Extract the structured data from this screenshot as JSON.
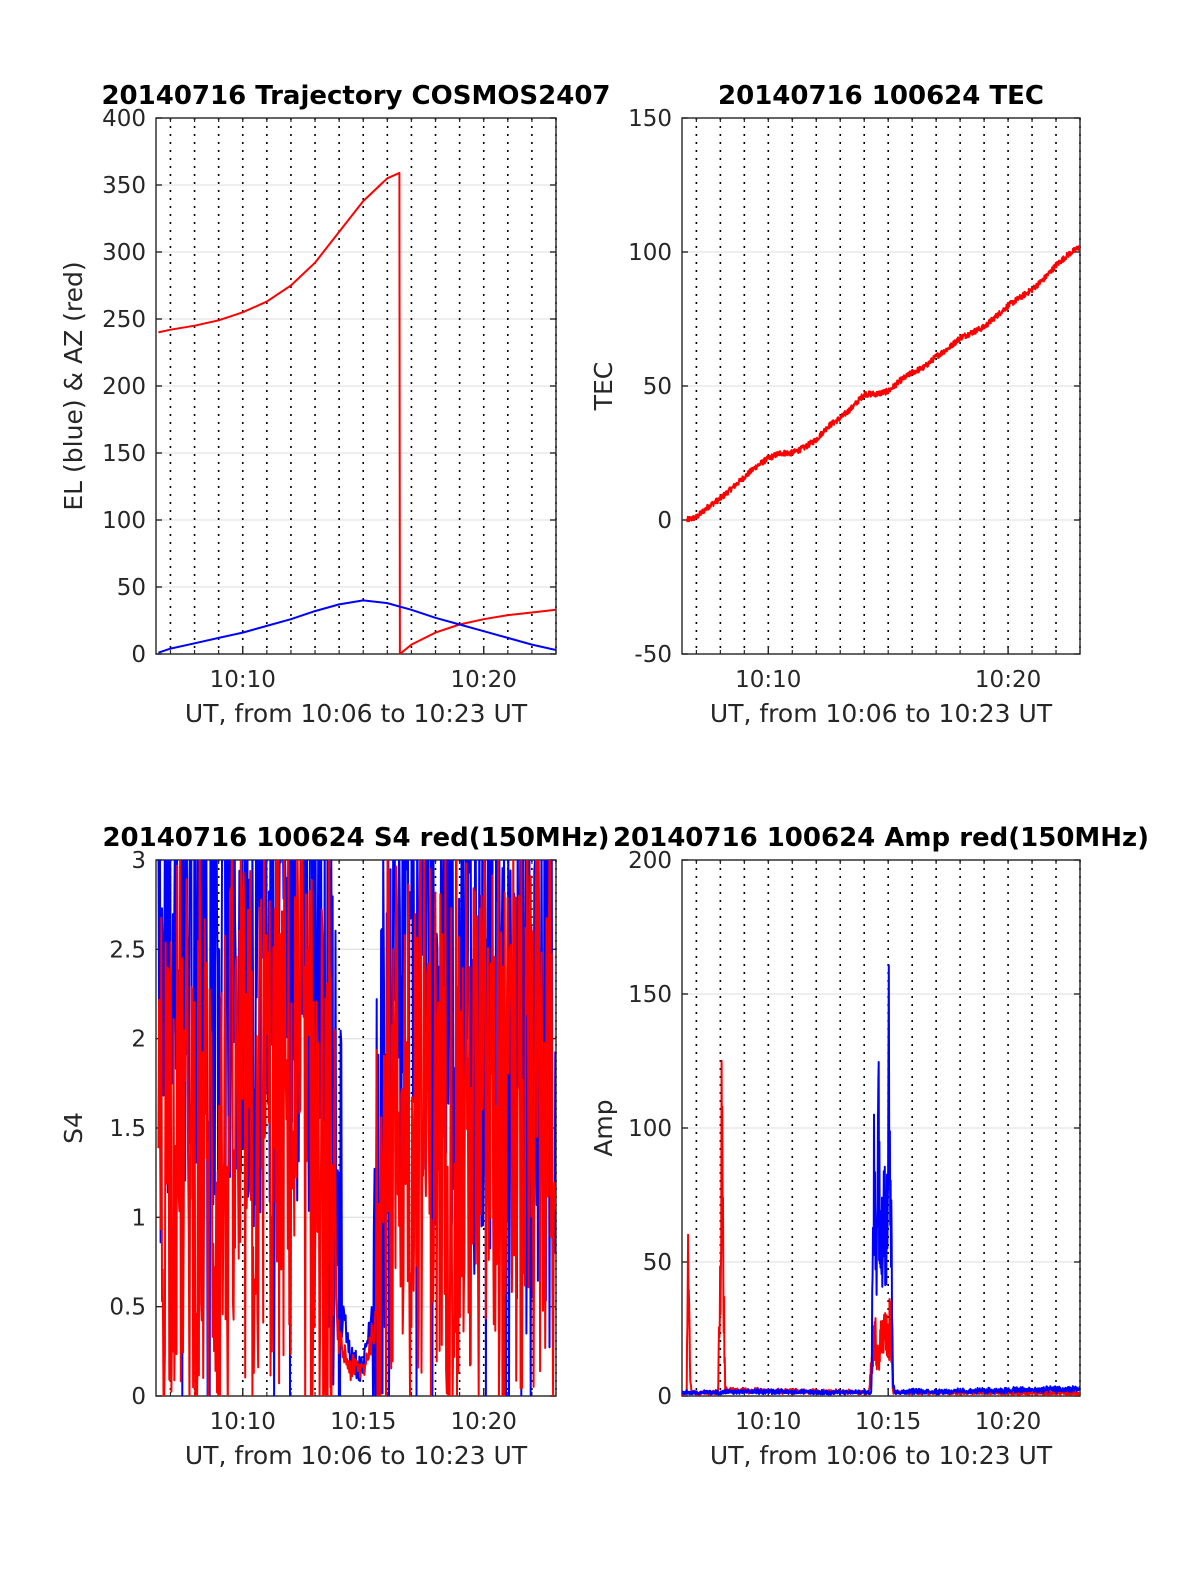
{
  "chart_data": [
    {
      "type": "line",
      "title": "20140716 Trajectory COSMOS2407",
      "xlabel": "UT, from 10:06 to 10:23 UT",
      "ylabel": "EL (blue) & AZ (red)",
      "xlim_minutes": [
        6.4,
        23.0
      ],
      "ylim": [
        0,
        400
      ],
      "x_ticks": [
        "10:10",
        "10:20"
      ],
      "y_ticks": [
        "0",
        "50",
        "100",
        "150",
        "200",
        "250",
        "300",
        "350",
        "400"
      ],
      "grid": "minor-dotted-x, major-solid-y",
      "series": [
        {
          "color": "#ff0000",
          "x_minutes": [
            6.5,
            7,
            8,
            9,
            10,
            11,
            12,
            13,
            14,
            15,
            16,
            16.5,
            16.52,
            17,
            18,
            19,
            20,
            21,
            22,
            23
          ],
          "values": [
            240,
            242,
            245,
            249,
            255,
            263,
            275,
            292,
            315,
            338,
            355,
            359,
            0,
            7,
            16,
            22,
            26,
            29,
            31,
            33
          ]
        },
        {
          "color": "#0000ff",
          "x_minutes": [
            6.5,
            7,
            8,
            9,
            10,
            11,
            12,
            13,
            14,
            15,
            16,
            17,
            18,
            19,
            20,
            21,
            22,
            23
          ],
          "values": [
            1,
            4,
            8,
            12,
            16,
            21,
            26,
            32,
            37,
            40,
            38,
            33,
            27,
            22,
            17,
            12,
            7,
            3
          ]
        }
      ]
    },
    {
      "type": "line",
      "title": "20140716 100624 TEC",
      "xlabel": "UT, from 10:06 to 10:23 UT",
      "ylabel": "TEC",
      "xlim_minutes": [
        6.4,
        23.0
      ],
      "ylim": [
        -50,
        150
      ],
      "x_ticks": [
        "10:10",
        "10:20"
      ],
      "y_ticks": [
        "-50",
        "0",
        "50",
        "100",
        "150"
      ],
      "grid": "minor-dotted-x, major-solid-y",
      "series": [
        {
          "color": "#ff0000",
          "x_minutes": [
            6.6,
            7,
            7.5,
            8,
            8.5,
            9,
            9.5,
            10,
            10.5,
            11,
            11.5,
            12,
            12.5,
            13,
            13.5,
            14,
            14.5,
            15,
            15.5,
            16,
            16.5,
            17,
            17.5,
            18,
            18.5,
            19,
            19.5,
            20,
            20.5,
            21,
            21.5,
            22,
            22.5,
            23
          ],
          "values": [
            0,
            1,
            5,
            8,
            12,
            16,
            20,
            23,
            25,
            25,
            27,
            30,
            35,
            38,
            42,
            47,
            47,
            48,
            52,
            55,
            57,
            61,
            64,
            68,
            70,
            72,
            76,
            80,
            83,
            86,
            90,
            95,
            99,
            102
          ]
        }
      ]
    },
    {
      "type": "line",
      "title": "20140716 100624 S4 red(150MHz)",
      "xlabel": "UT, from 10:06 to 10:23 UT",
      "ylabel": "S4",
      "xlim_minutes": [
        6.4,
        23.0
      ],
      "ylim": [
        0,
        3
      ],
      "x_ticks": [
        "10:10",
        "10:15",
        "10:20"
      ],
      "y_ticks": [
        "0",
        "0.5",
        "1",
        "1.5",
        "2",
        "2.5",
        "3"
      ],
      "grid": "minor-dotted-x, major-solid-y",
      "series": [
        {
          "color": "#0000ff",
          "x_minutes": [
            6.5,
            7,
            8,
            9,
            10,
            11,
            12,
            13,
            13.5,
            14,
            14.5,
            15,
            15.5,
            16,
            16.5,
            17,
            18,
            19,
            20,
            21,
            22,
            23
          ],
          "values": [
            2.1,
            2.6,
            2.7,
            2.6,
            2.5,
            2.6,
            2.7,
            2.6,
            2.0,
            0.6,
            0.2,
            0.15,
            0.6,
            2.2,
            2.4,
            2.6,
            2.5,
            2.3,
            2.2,
            2.0,
            1.9,
            1.8
          ]
        },
        {
          "color": "#ff0000",
          "x_minutes": [
            6.5,
            7,
            8,
            9,
            10,
            11,
            12,
            13,
            13.5,
            14,
            14.5,
            15,
            15.5,
            16,
            16.5,
            17,
            18,
            19,
            20,
            21,
            22,
            23
          ],
          "values": [
            1.3,
            1.6,
            1.3,
            1.2,
            1.4,
            1.5,
            1.6,
            1.4,
            1.1,
            0.3,
            0.15,
            0.15,
            0.4,
            1.4,
            1.6,
            1.8,
            1.5,
            1.4,
            1.6,
            1.3,
            1.5,
            1.7
          ]
        }
      ]
    },
    {
      "type": "line",
      "title": "20140716 100624 Amp red(150MHz)",
      "xlabel": "UT, from 10:06 to 10:23 UT",
      "ylabel": "Amp",
      "xlim_minutes": [
        6.4,
        23.0
      ],
      "ylim": [
        0,
        200
      ],
      "x_ticks": [
        "10:10",
        "10:15",
        "10:20"
      ],
      "y_ticks": [
        "0",
        "50",
        "100",
        "150",
        "200"
      ],
      "grid": "minor-dotted-x, major-solid-y",
      "series": [
        {
          "color": "#ff0000",
          "x_minutes": [
            6.4,
            6.6,
            6.65,
            6.7,
            6.75,
            6.8,
            7.0,
            7.9,
            8.0,
            8.05,
            8.1,
            8.2,
            14.2,
            14.4,
            14.6,
            14.8,
            15.0,
            15.1,
            15.2,
            23.0
          ],
          "values": [
            0.5,
            1,
            93,
            30,
            5,
            1,
            0.5,
            1,
            60,
            158,
            80,
            2,
            1,
            30,
            20,
            35,
            25,
            42,
            1,
            0.5
          ]
        },
        {
          "color": "#0000ff",
          "x_minutes": [
            6.4,
            8.0,
            10.0,
            12.0,
            14.0,
            14.3,
            14.4,
            14.5,
            14.6,
            14.7,
            14.8,
            14.9,
            15.0,
            15.1,
            15.2,
            15.3,
            16.0,
            18.0,
            20.0,
            23.0
          ],
          "values": [
            1,
            1,
            1.5,
            1,
            1,
            1,
            102,
            80,
            143,
            60,
            130,
            70,
            164,
            120,
            5,
            1,
            1.5,
            1.5,
            2,
            2.5
          ]
        }
      ]
    }
  ]
}
